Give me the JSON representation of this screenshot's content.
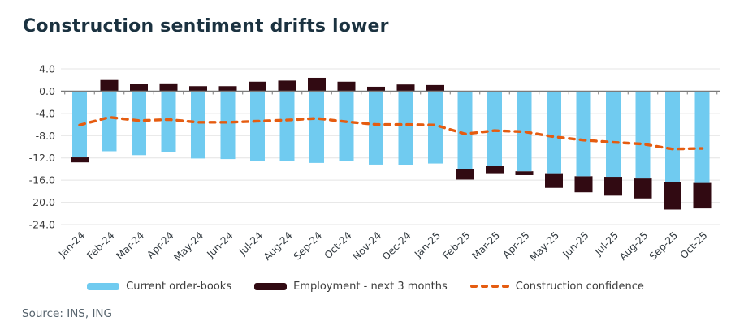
{
  "title": "Construction sentiment drifts lower",
  "source": "Source: INS, ING",
  "colors": {
    "order_books": "#70cbf0",
    "employment": "#310a12",
    "confidence": "#e55c10",
    "grid": "#e4e4e4",
    "zero_axis": "#7a7a7a",
    "axis_text": "#3b3b3b",
    "month_text": "#333b41"
  },
  "legend": {
    "items": [
      {
        "label": "Current order-books",
        "swatch": "bar",
        "color": "#70cbf0"
      },
      {
        "label": "Employment - next 3 months",
        "swatch": "bar",
        "color": "#310a12"
      },
      {
        "label": "Construction confidence",
        "swatch": "dashed-line",
        "color": "#e55c10"
      }
    ]
  },
  "chart_data": {
    "type": "bar",
    "title": "Construction sentiment drifts lower",
    "xlabel": "",
    "ylabel": "",
    "ylim": [
      -24,
      4
    ],
    "ytick_step": 4,
    "ytick_values": [
      4,
      0,
      -4,
      -8,
      -12,
      -16,
      -20,
      -24
    ],
    "ytick_labels": [
      "4.0",
      "0.0",
      "-4.0",
      "-8.0",
      "-12.0",
      "-16.0",
      "-20.0",
      "-24.0"
    ],
    "grid": true,
    "legend_position": "bottom",
    "categories": [
      "Jan-24",
      "Feb-24",
      "Mar-24",
      "Apr-24",
      "May-24",
      "Jun-24",
      "Jul-24",
      "Aug-24",
      "Sep-24",
      "Oct-24",
      "Nov-24",
      "Dec-24",
      "Jan-25",
      "Feb-25",
      "Mar-25",
      "Apr-25",
      "May-25",
      "Jun-25",
      "Jul-25",
      "Aug-25",
      "Sep-25",
      "Oct-25"
    ],
    "series": [
      {
        "name": "Current order-books",
        "type": "bar",
        "color": "#70cbf0",
        "values": [
          -11.9,
          -10.8,
          -11.5,
          -11.0,
          -12.1,
          -12.2,
          -12.6,
          -12.5,
          -12.9,
          -12.6,
          -13.2,
          -13.3,
          -13.0,
          -14.0,
          -13.5,
          -14.4,
          -14.9,
          -15.3,
          -15.4,
          -15.7,
          -16.3,
          -16.5
        ]
      },
      {
        "name": "Employment - next 3 months",
        "type": "bar",
        "color": "#310a12",
        "values": [
          -12.8,
          2.0,
          1.3,
          1.4,
          0.9,
          0.9,
          1.7,
          1.9,
          2.4,
          1.7,
          0.8,
          1.2,
          1.1,
          -15.9,
          -14.9,
          -15.1,
          -17.4,
          -18.2,
          -18.8,
          -19.3,
          -21.3,
          -21.1
        ]
      },
      {
        "name": "Construction confidence",
        "type": "line-dashed",
        "color": "#e55c10",
        "values": [
          -6.1,
          -4.7,
          -5.3,
          -5.1,
          -5.6,
          -5.6,
          -5.4,
          -5.2,
          -4.9,
          -5.5,
          -6.0,
          -6.0,
          -6.1,
          -7.7,
          -7.1,
          -7.3,
          -8.2,
          -8.8,
          -9.2,
          -9.5,
          -10.4,
          -10.3
        ]
      }
    ]
  }
}
